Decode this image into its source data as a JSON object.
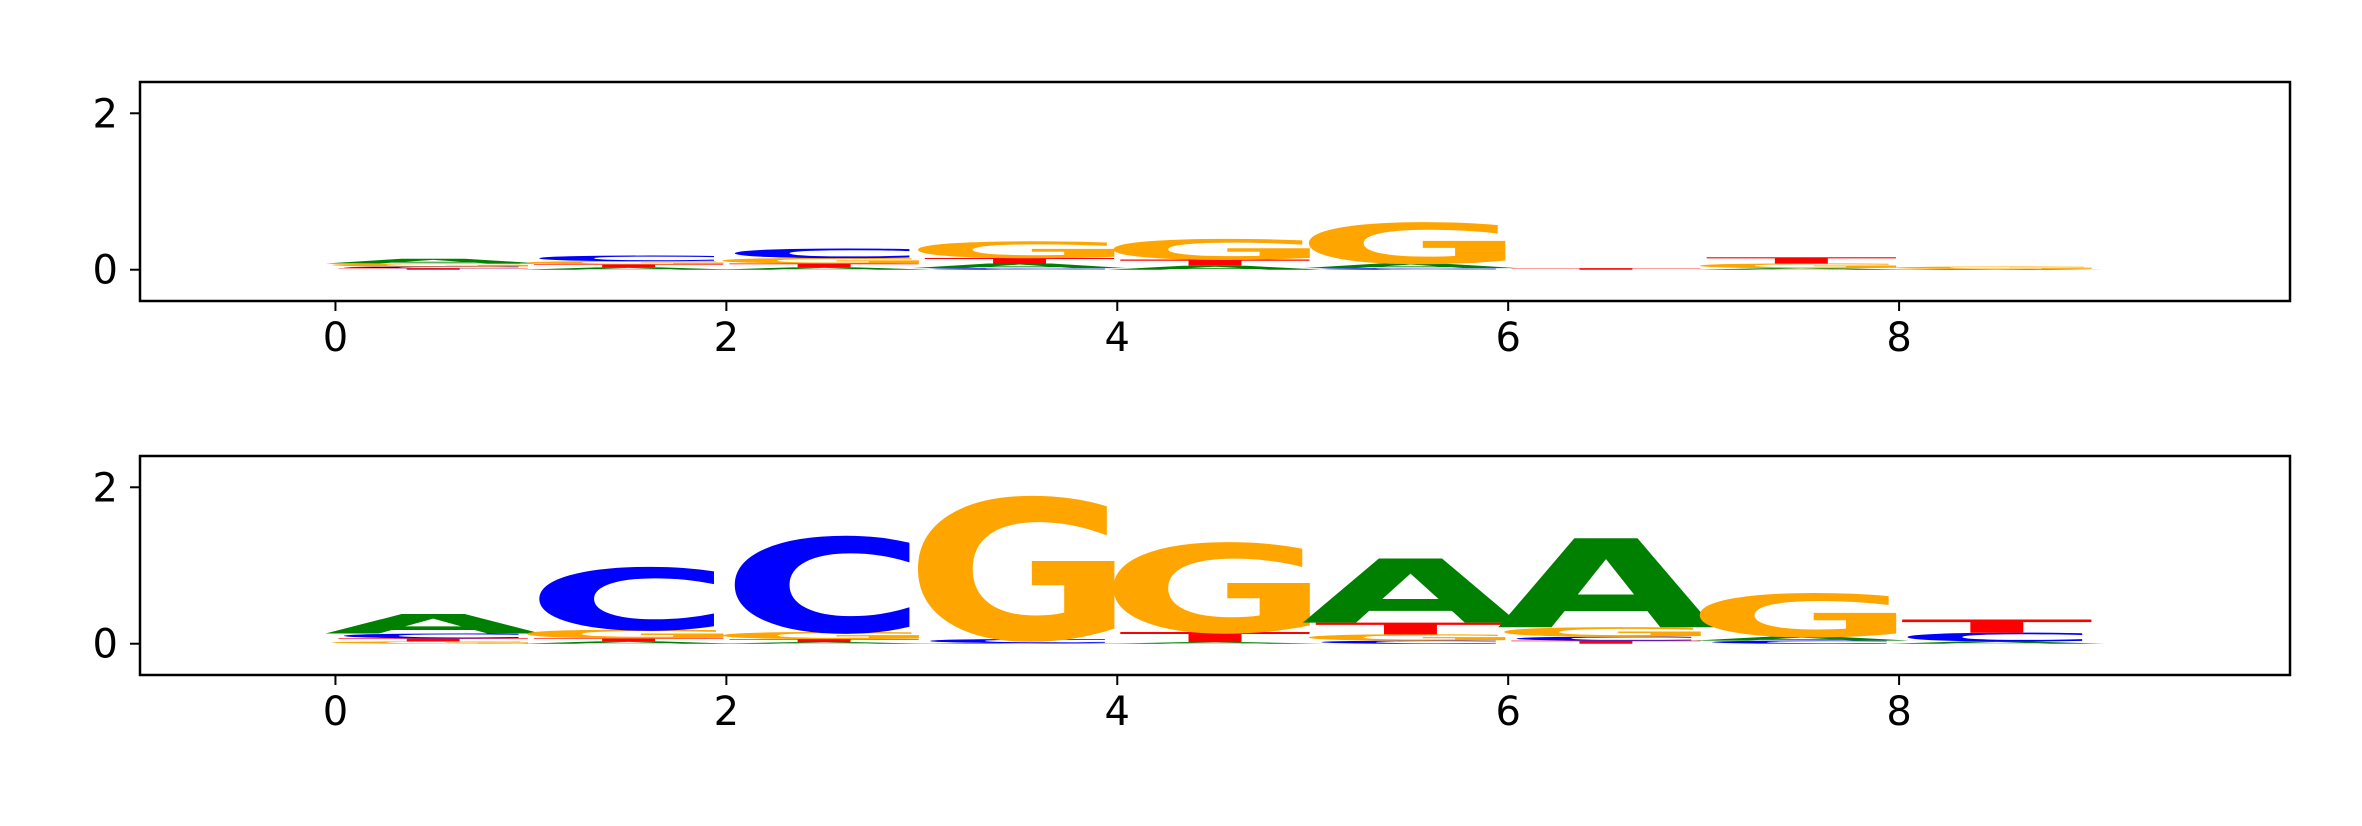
{
  "colors": {
    "A": "#008000",
    "C": "#0000ff",
    "G": "#ffa500",
    "T": "#ff0000",
    "axis": "#000000",
    "background": "#ffffff"
  },
  "chart_data": [
    {
      "type": "sequence-logo",
      "title": "",
      "xlabel": "",
      "ylabel": "",
      "xlim": [
        -1,
        10
      ],
      "ylim": [
        -0.4,
        2.4
      ],
      "xticks": [
        "0",
        "2",
        "4",
        "6",
        "8"
      ],
      "yticks": [
        "0",
        "2"
      ],
      "grid": false,
      "positions": [
        0,
        1,
        2,
        3,
        4,
        5,
        6,
        7,
        8
      ],
      "letters": [
        [
          {
            "base": "T",
            "height": 0.02
          },
          {
            "base": "C",
            "height": 0.02
          },
          {
            "base": "G",
            "height": 0.04
          },
          {
            "base": "A",
            "height": 0.06
          }
        ],
        [
          {
            "base": "A",
            "height": 0.03
          },
          {
            "base": "T",
            "height": 0.04
          },
          {
            "base": "G",
            "height": 0.04
          },
          {
            "base": "C",
            "height": 0.07
          }
        ],
        [
          {
            "base": "A",
            "height": 0.03
          },
          {
            "base": "T",
            "height": 0.05
          },
          {
            "base": "G",
            "height": 0.07
          },
          {
            "base": "C",
            "height": 0.12
          }
        ],
        [
          {
            "base": "C",
            "height": 0.02
          },
          {
            "base": "A",
            "height": 0.06
          },
          {
            "base": "T",
            "height": 0.07
          },
          {
            "base": "G",
            "height": 0.21
          }
        ],
        [
          {
            "base": "A",
            "height": 0.05
          },
          {
            "base": "T",
            "height": 0.08
          },
          {
            "base": "G",
            "height": 0.26
          }
        ],
        [
          {
            "base": "C",
            "height": 0.02
          },
          {
            "base": "A",
            "height": 0.06
          },
          {
            "base": "G",
            "height": 0.52
          }
        ],
        [
          {
            "base": "T",
            "height": 0.02
          }
        ],
        [
          {
            "base": "A",
            "height": 0.02
          },
          {
            "base": "G",
            "height": 0.06
          },
          {
            "base": "T",
            "height": 0.08
          }
        ],
        [
          {
            "base": "A",
            "height": 0.01
          },
          {
            "base": "G",
            "height": 0.03
          }
        ]
      ]
    },
    {
      "type": "sequence-logo",
      "title": "",
      "xlabel": "",
      "ylabel": "",
      "xlim": [
        -1,
        10
      ],
      "ylim": [
        -0.4,
        2.4
      ],
      "xticks": [
        "0",
        "2",
        "4",
        "6",
        "8"
      ],
      "yticks": [
        "0",
        "2"
      ],
      "grid": false,
      "positions": [
        0,
        1,
        2,
        3,
        4,
        5,
        6,
        7,
        8
      ],
      "letters": [
        [
          {
            "base": "G",
            "height": 0.03
          },
          {
            "base": "T",
            "height": 0.04
          },
          {
            "base": "C",
            "height": 0.06
          },
          {
            "base": "A",
            "height": 0.25
          }
        ],
        [
          {
            "base": "A",
            "height": 0.03
          },
          {
            "base": "T",
            "height": 0.04
          },
          {
            "base": "G",
            "height": 0.11
          },
          {
            "base": "C",
            "height": 0.79
          }
        ],
        [
          {
            "base": "A",
            "height": 0.02
          },
          {
            "base": "T",
            "height": 0.04
          },
          {
            "base": "G",
            "height": 0.09
          },
          {
            "base": "C",
            "height": 1.21
          }
        ],
        [
          {
            "base": "A",
            "height": 0.01
          },
          {
            "base": "C",
            "height": 0.05
          },
          {
            "base": "G",
            "height": 1.8
          }
        ],
        [
          {
            "base": "A",
            "height": 0.02
          },
          {
            "base": "T",
            "height": 0.13
          },
          {
            "base": "G",
            "height": 1.13
          }
        ],
        [
          {
            "base": "C",
            "height": 0.04
          },
          {
            "base": "G",
            "height": 0.08
          },
          {
            "base": "T",
            "height": 0.15
          },
          {
            "base": "A",
            "height": 0.82
          }
        ],
        [
          {
            "base": "T",
            "height": 0.04
          },
          {
            "base": "C",
            "height": 0.05
          },
          {
            "base": "G",
            "height": 0.12
          },
          {
            "base": "A",
            "height": 1.14
          }
        ],
        [
          {
            "base": "C",
            "height": 0.04
          },
          {
            "base": "A",
            "height": 0.05
          },
          {
            "base": "G",
            "height": 0.55
          }
        ],
        [
          {
            "base": "A",
            "height": 0.03
          },
          {
            "base": "C",
            "height": 0.11
          },
          {
            "base": "T",
            "height": 0.17
          }
        ]
      ]
    }
  ]
}
